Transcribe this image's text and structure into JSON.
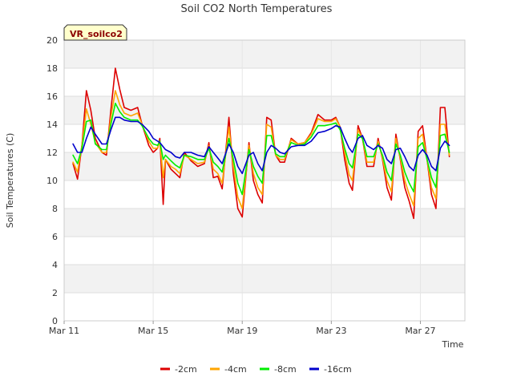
{
  "chart_data": {
    "type": "line",
    "title": "Soil CO2 North Temperatures",
    "xlabel": "Time",
    "ylabel": "Soil Temperatures (C)",
    "ylim": [
      0,
      20
    ],
    "y_ticks": [
      0,
      2,
      4,
      6,
      8,
      10,
      12,
      14,
      16,
      18,
      20
    ],
    "x_range_days": [
      11,
      29
    ],
    "x_ticks": [
      {
        "day": 11,
        "label": "Mar 11"
      },
      {
        "day": 15,
        "label": "Mar 15"
      },
      {
        "day": 19,
        "label": "Mar 19"
      },
      {
        "day": 23,
        "label": "Mar 23"
      },
      {
        "day": 27,
        "label": "Mar 27"
      }
    ],
    "grid": true,
    "legend_position": "bottom",
    "tag": "VR_soilco2",
    "series": [
      {
        "name": "-2cm",
        "color": "#dd0000",
        "points": [
          [
            11.4,
            11.2
          ],
          [
            11.6,
            10.1
          ],
          [
            11.8,
            12.5
          ],
          [
            12.0,
            16.4
          ],
          [
            12.2,
            15.0
          ],
          [
            12.4,
            13.0
          ],
          [
            12.7,
            12.0
          ],
          [
            12.9,
            11.8
          ],
          [
            13.1,
            15.0
          ],
          [
            13.3,
            18.0
          ],
          [
            13.5,
            16.5
          ],
          [
            13.7,
            15.2
          ],
          [
            14.0,
            15.0
          ],
          [
            14.3,
            15.2
          ],
          [
            14.5,
            14.0
          ],
          [
            14.8,
            12.5
          ],
          [
            15.0,
            12.0
          ],
          [
            15.2,
            12.3
          ],
          [
            15.3,
            13.0
          ],
          [
            15.45,
            8.3
          ],
          [
            15.55,
            11.5
          ],
          [
            15.8,
            10.8
          ],
          [
            16.0,
            10.5
          ],
          [
            16.2,
            10.2
          ],
          [
            16.4,
            12.0
          ],
          [
            16.7,
            11.4
          ],
          [
            17.0,
            11.0
          ],
          [
            17.3,
            11.2
          ],
          [
            17.5,
            12.7
          ],
          [
            17.7,
            10.2
          ],
          [
            17.9,
            10.3
          ],
          [
            18.1,
            9.4
          ],
          [
            18.4,
            14.5
          ],
          [
            18.6,
            10.5
          ],
          [
            18.8,
            8.0
          ],
          [
            19.0,
            7.4
          ],
          [
            19.3,
            12.7
          ],
          [
            19.5,
            10.0
          ],
          [
            19.7,
            9.0
          ],
          [
            19.9,
            8.4
          ],
          [
            20.1,
            14.5
          ],
          [
            20.3,
            14.3
          ],
          [
            20.5,
            11.8
          ],
          [
            20.7,
            11.3
          ],
          [
            20.9,
            11.3
          ],
          [
            21.2,
            13.0
          ],
          [
            21.5,
            12.6
          ],
          [
            21.8,
            12.7
          ],
          [
            22.1,
            13.4
          ],
          [
            22.4,
            14.7
          ],
          [
            22.7,
            14.3
          ],
          [
            23.0,
            14.3
          ],
          [
            23.2,
            14.5
          ],
          [
            23.4,
            13.8
          ],
          [
            23.6,
            11.5
          ],
          [
            23.8,
            9.8
          ],
          [
            23.95,
            9.3
          ],
          [
            24.2,
            13.9
          ],
          [
            24.4,
            13.0
          ],
          [
            24.6,
            11.0
          ],
          [
            24.9,
            11.0
          ],
          [
            25.1,
            13.0
          ],
          [
            25.3,
            11.5
          ],
          [
            25.5,
            9.5
          ],
          [
            25.7,
            8.6
          ],
          [
            25.9,
            13.3
          ],
          [
            26.1,
            11.5
          ],
          [
            26.3,
            9.5
          ],
          [
            26.5,
            8.5
          ],
          [
            26.7,
            7.3
          ],
          [
            26.9,
            13.5
          ],
          [
            27.1,
            13.9
          ],
          [
            27.3,
            11.5
          ],
          [
            27.5,
            9.0
          ],
          [
            27.7,
            8.0
          ],
          [
            27.9,
            15.2
          ],
          [
            28.1,
            15.2
          ],
          [
            28.3,
            11.7
          ]
        ]
      },
      {
        "name": "-4cm",
        "color": "#ffa500",
        "points": [
          [
            11.4,
            11.3
          ],
          [
            11.6,
            10.6
          ],
          [
            11.8,
            12.5
          ],
          [
            12.0,
            15.1
          ],
          [
            12.2,
            14.0
          ],
          [
            12.4,
            12.7
          ],
          [
            12.7,
            12.0
          ],
          [
            12.9,
            12.0
          ],
          [
            13.1,
            14.5
          ],
          [
            13.3,
            16.4
          ],
          [
            13.5,
            15.4
          ],
          [
            13.7,
            14.8
          ],
          [
            14.0,
            14.6
          ],
          [
            14.3,
            14.8
          ],
          [
            14.5,
            14.0
          ],
          [
            14.8,
            12.8
          ],
          [
            15.0,
            12.3
          ],
          [
            15.2,
            12.3
          ],
          [
            15.3,
            12.8
          ],
          [
            15.45,
            10.2
          ],
          [
            15.55,
            11.5
          ],
          [
            15.8,
            11.0
          ],
          [
            16.0,
            10.8
          ],
          [
            16.2,
            10.5
          ],
          [
            16.4,
            11.8
          ],
          [
            16.7,
            11.5
          ],
          [
            17.0,
            11.2
          ],
          [
            17.3,
            11.3
          ],
          [
            17.5,
            12.5
          ],
          [
            17.7,
            10.8
          ],
          [
            17.9,
            10.5
          ],
          [
            18.1,
            9.8
          ],
          [
            18.4,
            13.8
          ],
          [
            18.6,
            11.0
          ],
          [
            18.8,
            8.8
          ],
          [
            19.0,
            8.0
          ],
          [
            19.3,
            12.5
          ],
          [
            19.5,
            10.5
          ],
          [
            19.7,
            9.5
          ],
          [
            19.9,
            9.0
          ],
          [
            20.1,
            14.0
          ],
          [
            20.3,
            13.8
          ],
          [
            20.5,
            11.8
          ],
          [
            20.7,
            11.5
          ],
          [
            20.9,
            11.5
          ],
          [
            21.2,
            12.9
          ],
          [
            21.5,
            12.6
          ],
          [
            21.8,
            12.7
          ],
          [
            22.1,
            13.3
          ],
          [
            22.4,
            14.4
          ],
          [
            22.7,
            14.2
          ],
          [
            23.0,
            14.2
          ],
          [
            23.2,
            14.4
          ],
          [
            23.4,
            13.8
          ],
          [
            23.6,
            12.0
          ],
          [
            23.8,
            10.4
          ],
          [
            23.95,
            10.0
          ],
          [
            24.2,
            13.6
          ],
          [
            24.4,
            13.0
          ],
          [
            24.6,
            11.3
          ],
          [
            24.9,
            11.3
          ],
          [
            25.1,
            12.8
          ],
          [
            25.3,
            11.6
          ],
          [
            25.5,
            10.0
          ],
          [
            25.7,
            9.2
          ],
          [
            25.9,
            13.0
          ],
          [
            26.1,
            11.6
          ],
          [
            26.3,
            10.0
          ],
          [
            26.5,
            9.0
          ],
          [
            26.7,
            8.2
          ],
          [
            26.9,
            13.0
          ],
          [
            27.1,
            13.3
          ],
          [
            27.3,
            11.5
          ],
          [
            27.5,
            9.5
          ],
          [
            27.7,
            8.7
          ],
          [
            27.9,
            14.0
          ],
          [
            28.1,
            14.0
          ],
          [
            28.3,
            11.8
          ]
        ]
      },
      {
        "name": "-8cm",
        "color": "#00ee00",
        "points": [
          [
            11.4,
            11.8
          ],
          [
            11.6,
            11.2
          ],
          [
            11.8,
            12.3
          ],
          [
            12.0,
            14.2
          ],
          [
            12.2,
            14.3
          ],
          [
            12.4,
            12.6
          ],
          [
            12.7,
            12.2
          ],
          [
            12.9,
            12.2
          ],
          [
            13.1,
            14.0
          ],
          [
            13.3,
            15.5
          ],
          [
            13.5,
            14.9
          ],
          [
            13.7,
            14.5
          ],
          [
            14.0,
            14.3
          ],
          [
            14.3,
            14.3
          ],
          [
            14.5,
            13.9
          ],
          [
            14.8,
            13.0
          ],
          [
            15.0,
            12.6
          ],
          [
            15.2,
            12.5
          ],
          [
            15.3,
            12.8
          ],
          [
            15.45,
            11.5
          ],
          [
            15.55,
            11.8
          ],
          [
            15.8,
            11.4
          ],
          [
            16.0,
            11.1
          ],
          [
            16.2,
            10.9
          ],
          [
            16.4,
            11.8
          ],
          [
            16.7,
            11.7
          ],
          [
            17.0,
            11.5
          ],
          [
            17.3,
            11.5
          ],
          [
            17.5,
            12.3
          ],
          [
            17.7,
            11.3
          ],
          [
            17.9,
            11.0
          ],
          [
            18.1,
            10.6
          ],
          [
            18.4,
            13.0
          ],
          [
            18.6,
            11.5
          ],
          [
            18.8,
            9.8
          ],
          [
            19.0,
            9.0
          ],
          [
            19.3,
            12.2
          ],
          [
            19.5,
            11.0
          ],
          [
            19.7,
            10.3
          ],
          [
            19.9,
            9.8
          ],
          [
            20.1,
            13.2
          ],
          [
            20.3,
            13.2
          ],
          [
            20.5,
            11.9
          ],
          [
            20.7,
            11.7
          ],
          [
            20.9,
            11.7
          ],
          [
            21.2,
            12.7
          ],
          [
            21.5,
            12.5
          ],
          [
            21.8,
            12.6
          ],
          [
            22.1,
            13.1
          ],
          [
            22.4,
            13.9
          ],
          [
            22.7,
            13.9
          ],
          [
            23.0,
            14.0
          ],
          [
            23.2,
            14.1
          ],
          [
            23.4,
            13.6
          ],
          [
            23.6,
            12.3
          ],
          [
            23.8,
            11.2
          ],
          [
            23.95,
            10.9
          ],
          [
            24.2,
            13.3
          ],
          [
            24.4,
            13.0
          ],
          [
            24.6,
            11.7
          ],
          [
            24.9,
            11.7
          ],
          [
            25.1,
            12.6
          ],
          [
            25.3,
            11.8
          ],
          [
            25.5,
            10.6
          ],
          [
            25.7,
            10.0
          ],
          [
            25.9,
            12.6
          ],
          [
            26.1,
            11.8
          ],
          [
            26.3,
            10.6
          ],
          [
            26.5,
            9.8
          ],
          [
            26.7,
            9.2
          ],
          [
            26.9,
            12.4
          ],
          [
            27.1,
            12.7
          ],
          [
            27.3,
            11.5
          ],
          [
            27.5,
            10.2
          ],
          [
            27.7,
            9.5
          ],
          [
            27.9,
            13.2
          ],
          [
            28.1,
            13.3
          ],
          [
            28.3,
            12.0
          ]
        ]
      },
      {
        "name": "-16cm",
        "color": "#0000cc",
        "points": [
          [
            11.4,
            12.6
          ],
          [
            11.6,
            12.0
          ],
          [
            11.8,
            12.0
          ],
          [
            12.0,
            13.0
          ],
          [
            12.2,
            13.8
          ],
          [
            12.4,
            13.3
          ],
          [
            12.7,
            12.6
          ],
          [
            12.9,
            12.6
          ],
          [
            13.1,
            13.6
          ],
          [
            13.3,
            14.5
          ],
          [
            13.5,
            14.5
          ],
          [
            13.7,
            14.3
          ],
          [
            14.0,
            14.2
          ],
          [
            14.3,
            14.2
          ],
          [
            14.5,
            14.0
          ],
          [
            14.8,
            13.5
          ],
          [
            15.0,
            13.0
          ],
          [
            15.2,
            12.8
          ],
          [
            15.3,
            12.7
          ],
          [
            15.45,
            12.4
          ],
          [
            15.55,
            12.2
          ],
          [
            15.8,
            12.0
          ],
          [
            16.0,
            11.7
          ],
          [
            16.2,
            11.6
          ],
          [
            16.4,
            12.0
          ],
          [
            16.7,
            12.0
          ],
          [
            17.0,
            11.8
          ],
          [
            17.3,
            11.7
          ],
          [
            17.5,
            12.4
          ],
          [
            17.7,
            12.0
          ],
          [
            17.9,
            11.6
          ],
          [
            18.1,
            11.2
          ],
          [
            18.4,
            12.6
          ],
          [
            18.6,
            12.0
          ],
          [
            18.8,
            11.0
          ],
          [
            19.0,
            10.5
          ],
          [
            19.3,
            11.8
          ],
          [
            19.5,
            12.0
          ],
          [
            19.7,
            11.2
          ],
          [
            19.9,
            10.7
          ],
          [
            20.1,
            12.0
          ],
          [
            20.3,
            12.5
          ],
          [
            20.5,
            12.3
          ],
          [
            20.7,
            12.0
          ],
          [
            20.9,
            11.9
          ],
          [
            21.2,
            12.4
          ],
          [
            21.5,
            12.5
          ],
          [
            21.8,
            12.5
          ],
          [
            22.1,
            12.8
          ],
          [
            22.4,
            13.4
          ],
          [
            22.7,
            13.5
          ],
          [
            23.0,
            13.7
          ],
          [
            23.2,
            13.9
          ],
          [
            23.4,
            13.8
          ],
          [
            23.6,
            13.0
          ],
          [
            23.8,
            12.3
          ],
          [
            23.95,
            12.0
          ],
          [
            24.2,
            13.0
          ],
          [
            24.4,
            13.2
          ],
          [
            24.6,
            12.5
          ],
          [
            24.9,
            12.2
          ],
          [
            25.1,
            12.5
          ],
          [
            25.3,
            12.3
          ],
          [
            25.5,
            11.5
          ],
          [
            25.7,
            11.2
          ],
          [
            25.9,
            12.2
          ],
          [
            26.1,
            12.3
          ],
          [
            26.3,
            11.7
          ],
          [
            26.5,
            11.0
          ],
          [
            26.7,
            10.7
          ],
          [
            26.9,
            11.8
          ],
          [
            27.1,
            12.2
          ],
          [
            27.3,
            11.8
          ],
          [
            27.5,
            11.0
          ],
          [
            27.7,
            10.7
          ],
          [
            27.9,
            12.3
          ],
          [
            28.1,
            12.8
          ],
          [
            28.3,
            12.5
          ]
        ]
      }
    ]
  }
}
